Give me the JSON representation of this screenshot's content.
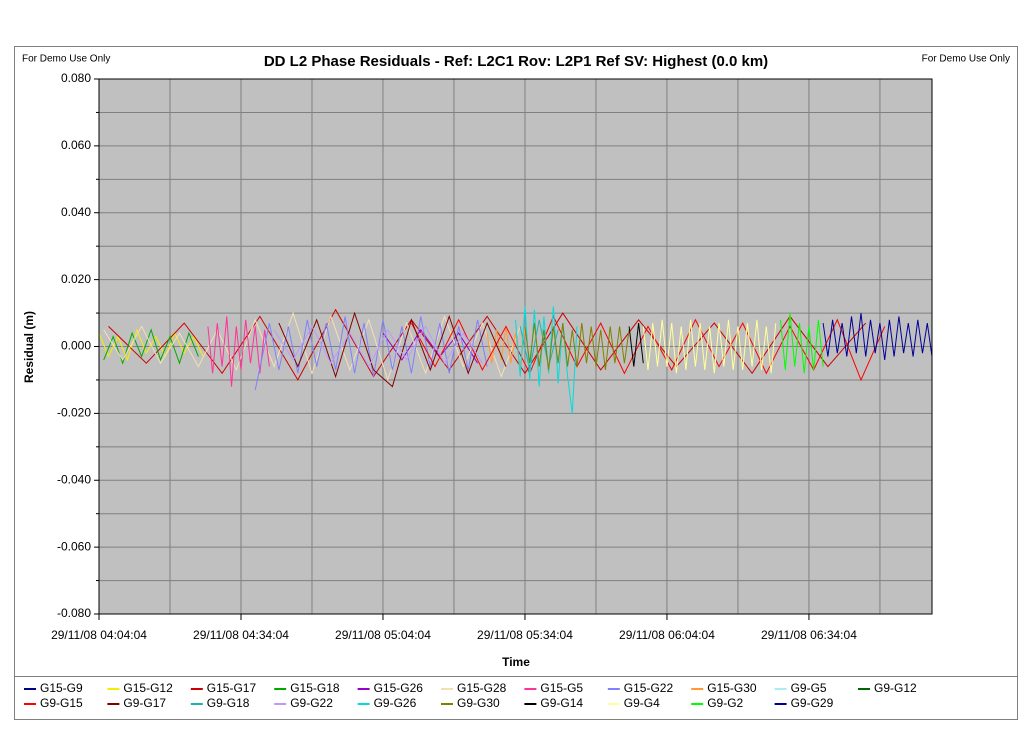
{
  "chart_data": {
    "type": "line",
    "title": "DD L2 Phase Residuals - Ref: L2C1 Rov: L2P1 Ref SV: Highest (0.0 km)",
    "note_left": "For Demo Use Only",
    "note_right": "For Demo Use Only",
    "x_label": "Time",
    "y_label": "Residual (m)",
    "xlim": [
      "29/11/08 04:04:04",
      "29/11/08 07:00:04"
    ],
    "xticks": [
      "29/11/08 04:04:04",
      "29/11/08 04:34:04",
      "29/11/08 05:04:04",
      "29/11/08 05:34:04",
      "29/11/08 06:04:04",
      "29/11/08 06:34:04"
    ],
    "x_minor_ticks": [
      "29/11/08 04:19:04",
      "29/11/08 04:49:04",
      "29/11/08 05:19:04",
      "29/11/08 05:49:04",
      "29/11/08 06:19:04",
      "29/11/08 06:49:04"
    ],
    "ylim": [
      -0.08,
      0.08
    ],
    "yticks": [
      {
        "value": -0.08,
        "label": "-0.080"
      },
      {
        "value": -0.06,
        "label": "-0.060"
      },
      {
        "value": -0.04,
        "label": "-0.040"
      },
      {
        "value": -0.02,
        "label": "-0.020"
      },
      {
        "value": 0,
        "label": "0.000"
      },
      {
        "value": 0.02,
        "label": "0.020"
      },
      {
        "value": 0.04,
        "label": "0.040"
      },
      {
        "value": 0.06,
        "label": "0.060"
      },
      {
        "value": 0.08,
        "label": "0.080"
      }
    ],
    "y_minor_ticks": [
      -0.07,
      -0.05,
      -0.03,
      -0.01,
      0.01,
      0.03,
      0.05,
      0.07
    ],
    "grid": true,
    "plot_background": "#c0c0c0",
    "legend_position": "bottom",
    "series": [
      {
        "name": "G15-G9",
        "color": "#00008b",
        "x": [],
        "values": []
      },
      {
        "name": "G15-G12",
        "color": "#f0f000",
        "x": [
          "29/11/08 04:04:04",
          "29/11/08 04:06:04",
          "29/11/08 04:08:04",
          "29/11/08 04:10:04",
          "29/11/08 04:12:04",
          "29/11/08 04:14:04",
          "29/11/08 04:16:04",
          "29/11/08 04:18:04",
          "29/11/08 04:20:04",
          "29/11/08 04:22:04",
          "29/11/08 04:24:04",
          "29/11/08 04:26:04"
        ],
        "values": [
          0.004,
          -0.003,
          0.003,
          -0.004,
          0.005,
          -0.002,
          0.003,
          -0.003,
          0.004,
          -0.002,
          0.003,
          -0.003
        ]
      },
      {
        "name": "G15-G17",
        "color": "#cc0000",
        "x": [
          "29/11/08 04:06:04",
          "29/11/08 04:14:04",
          "29/11/08 04:22:04",
          "29/11/08 04:30:04",
          "29/11/08 04:38:04",
          "29/11/08 04:46:04",
          "29/11/08 04:54:04",
          "29/11/08 05:02:04",
          "29/11/08 05:10:04",
          "29/11/08 05:18:04",
          "29/11/08 05:26:04",
          "29/11/08 05:34:04",
          "29/11/08 05:42:04",
          "29/11/08 05:50:04",
          "29/11/08 05:58:04",
          "29/11/08 06:06:04",
          "29/11/08 06:14:04",
          "29/11/08 06:22:04",
          "29/11/08 06:30:04",
          "29/11/08 06:38:04",
          "29/11/08 06:46:04"
        ],
        "values": [
          0.006,
          -0.005,
          0.007,
          -0.008,
          0.009,
          -0.01,
          0.011,
          -0.009,
          0.008,
          -0.007,
          0.009,
          -0.008,
          0.01,
          -0.007,
          0.008,
          -0.006,
          0.007,
          -0.008,
          0.009,
          -0.006,
          0.007
        ]
      },
      {
        "name": "G15-G18",
        "color": "#00aa00",
        "x": [
          "29/11/08 04:05:04",
          "29/11/08 04:07:04",
          "29/11/08 04:09:04",
          "29/11/08 04:11:04",
          "29/11/08 04:13:04",
          "29/11/08 04:15:04",
          "29/11/08 04:17:04",
          "29/11/08 04:19:04",
          "29/11/08 04:21:04",
          "29/11/08 04:23:04",
          "29/11/08 04:25:04"
        ],
        "values": [
          -0.004,
          0.003,
          -0.005,
          0.004,
          -0.003,
          0.005,
          -0.004,
          0.003,
          -0.005,
          0.004,
          -0.003
        ]
      },
      {
        "name": "G15-G26",
        "color": "#9900cc",
        "x": [
          "29/11/08 05:04:04",
          "29/11/08 05:08:04",
          "29/11/08 05:12:04",
          "29/11/08 05:16:04",
          "29/11/08 05:20:04",
          "29/11/08 05:24:04"
        ],
        "values": [
          0.004,
          -0.004,
          0.005,
          -0.003,
          0.004,
          -0.005
        ]
      },
      {
        "name": "G15-G28",
        "color": "#f5deb3",
        "x": [
          "29/11/08 04:05:04",
          "29/11/08 04:09:04",
          "29/11/08 04:13:04",
          "29/11/08 04:17:04",
          "29/11/08 04:21:04",
          "29/11/08 04:25:04",
          "29/11/08 04:29:04",
          "29/11/08 04:33:04",
          "29/11/08 04:37:04",
          "29/11/08 04:41:04",
          "29/11/08 04:45:04",
          "29/11/08 04:49:04",
          "29/11/08 04:53:04",
          "29/11/08 04:57:04",
          "29/11/08 05:01:04",
          "29/11/08 05:05:04",
          "29/11/08 05:09:04",
          "29/11/08 05:13:04",
          "29/11/08 05:17:04",
          "29/11/08 05:21:04",
          "29/11/08 05:25:04",
          "29/11/08 05:29:04",
          "29/11/08 05:33:04"
        ],
        "values": [
          0.005,
          -0.004,
          0.006,
          -0.005,
          0.004,
          -0.006,
          0.005,
          -0.007,
          0.008,
          -0.006,
          0.01,
          -0.008,
          0.009,
          -0.007,
          0.008,
          -0.01,
          0.007,
          -0.008,
          0.009,
          -0.006,
          0.007,
          -0.009,
          0.006
        ]
      },
      {
        "name": "G15-G5",
        "color": "#ff3399",
        "x": [
          "29/11/08 04:27:04",
          "29/11/08 04:28:04",
          "29/11/08 04:29:04",
          "29/11/08 04:30:04",
          "29/11/08 04:31:04",
          "29/11/08 04:32:04",
          "29/11/08 04:33:04",
          "29/11/08 04:34:04",
          "29/11/08 04:35:04",
          "29/11/08 04:36:04",
          "29/11/08 04:37:04",
          "29/11/08 04:38:04",
          "29/11/08 04:39:04",
          "29/11/08 04:40:04"
        ],
        "values": [
          0.006,
          -0.008,
          0.007,
          -0.006,
          0.009,
          -0.012,
          0.006,
          -0.007,
          0.008,
          -0.005,
          0.006,
          -0.008,
          0.005,
          -0.006
        ]
      },
      {
        "name": "G15-G22",
        "color": "#8080ff",
        "x": [
          "29/11/08 04:37:04",
          "29/11/08 04:40:04",
          "29/11/08 04:42:04",
          "29/11/08 04:44:04",
          "29/11/08 04:46:04",
          "29/11/08 04:48:04",
          "29/11/08 04:50:04",
          "29/11/08 04:52:04",
          "29/11/08 04:54:04",
          "29/11/08 04:56:04",
          "29/11/08 04:58:04",
          "29/11/08 05:00:04",
          "29/11/08 05:02:04",
          "29/11/08 05:04:04",
          "29/11/08 05:06:04",
          "29/11/08 05:08:04",
          "29/11/08 05:10:04",
          "29/11/08 05:12:04",
          "29/11/08 05:14:04",
          "29/11/08 05:16:04",
          "29/11/08 05:18:04",
          "29/11/08 05:20:04",
          "29/11/08 05:22:04",
          "29/11/08 05:24:04",
          "29/11/08 05:26:04"
        ],
        "values": [
          -0.013,
          0.007,
          -0.007,
          0.006,
          -0.008,
          0.008,
          -0.006,
          0.007,
          -0.007,
          0.009,
          -0.008,
          0.007,
          -0.009,
          0.008,
          -0.007,
          0.006,
          -0.008,
          0.009,
          -0.006,
          0.007,
          -0.008,
          0.006,
          -0.007,
          0.008,
          -0.006
        ]
      },
      {
        "name": "G15-G30",
        "color": "#ff9933",
        "x": [
          "29/11/08 05:26:04",
          "29/11/08 05:27:04",
          "29/11/08 05:28:04",
          "29/11/08 05:29:04",
          "29/11/08 05:30:04",
          "29/11/08 05:31:04",
          "29/11/08 05:32:04",
          "29/11/08 05:33:04",
          "29/11/08 05:34:04"
        ],
        "values": [
          0.004,
          -0.005,
          0.005,
          -0.004,
          0.006,
          -0.005,
          0.004,
          -0.006,
          0.005
        ]
      },
      {
        "name": "G9-G5",
        "color": "#aaeeee",
        "x": [],
        "values": []
      },
      {
        "name": "G9-G12",
        "color": "#006600",
        "x": [],
        "values": []
      },
      {
        "name": "G9-G15",
        "color": "#ff0000",
        "x": [
          "29/11/08 05:10:04",
          "29/11/08 05:15:04",
          "29/11/08 05:20:04",
          "29/11/08 05:25:04",
          "29/11/08 05:30:04",
          "29/11/08 05:35:04",
          "29/11/08 05:40:04",
          "29/11/08 05:45:04",
          "29/11/08 05:50:04",
          "29/11/08 05:55:04",
          "29/11/08 06:00:04",
          "29/11/08 06:05:04",
          "29/11/08 06:10:04",
          "29/11/08 06:15:04",
          "29/11/08 06:20:04",
          "29/11/08 06:25:04",
          "29/11/08 06:30:04",
          "29/11/08 06:35:04",
          "29/11/08 06:40:04",
          "29/11/08 06:45:04",
          "29/11/08 06:50:04"
        ],
        "values": [
          0.007,
          -0.006,
          0.008,
          -0.007,
          0.006,
          -0.008,
          0.009,
          -0.006,
          0.007,
          -0.008,
          0.006,
          -0.007,
          0.008,
          -0.006,
          0.007,
          -0.008,
          0.006,
          -0.007,
          0.008,
          -0.01,
          0.006
        ]
      },
      {
        "name": "G9-G17",
        "color": "#800000",
        "x": [
          "29/11/08 04:42:04",
          "29/11/08 04:46:04",
          "29/11/08 04:50:04",
          "29/11/08 04:54:04",
          "29/11/08 04:58:04",
          "29/11/08 05:02:04",
          "29/11/08 05:06:04",
          "29/11/08 05:10:04",
          "29/11/08 05:14:04",
          "29/11/08 05:18:04",
          "29/11/08 05:22:04",
          "29/11/08 05:26:04",
          "29/11/08 05:30:04"
        ],
        "values": [
          0.007,
          -0.006,
          0.008,
          -0.009,
          0.01,
          -0.007,
          -0.012,
          0.008,
          -0.007,
          0.009,
          -0.008,
          0.007,
          -0.006
        ]
      },
      {
        "name": "G9-G18",
        "color": "#20b2aa",
        "x": [
          "29/11/08 05:33:04",
          "29/11/08 05:35:04",
          "29/11/08 05:37:04",
          "29/11/08 05:39:04",
          "29/11/08 05:41:04"
        ],
        "values": [
          0.006,
          -0.007,
          0.008,
          -0.006,
          0.005
        ]
      },
      {
        "name": "G9-G22",
        "color": "#bb99ff",
        "x": [
          "29/11/08 04:41:04",
          "29/11/08 04:45:04",
          "29/11/08 04:49:04",
          "29/11/08 04:53:04",
          "29/11/08 04:57:04",
          "29/11/08 05:01:04",
          "29/11/08 05:05:04",
          "29/11/08 05:09:04",
          "29/11/08 05:13:04",
          "29/11/08 05:17:04",
          "29/11/08 05:21:04",
          "29/11/08 05:25:04"
        ],
        "values": [
          0.005,
          -0.004,
          0.006,
          -0.005,
          0.004,
          -0.006,
          0.005,
          -0.004,
          0.006,
          -0.005,
          0.004,
          -0.005
        ]
      },
      {
        "name": "G9-G26",
        "color": "#00dddd",
        "x": [
          "29/11/08 05:32:04",
          "29/11/08 05:33:04",
          "29/11/08 05:34:04",
          "29/11/08 05:35:04",
          "29/11/08 05:36:04",
          "29/11/08 05:37:04",
          "29/11/08 05:38:04",
          "29/11/08 05:39:04",
          "29/11/08 05:40:04",
          "29/11/08 05:41:04",
          "29/11/08 05:42:04",
          "29/11/08 05:43:04",
          "29/11/08 05:44:04",
          "29/11/08 05:45:04"
        ],
        "values": [
          0.008,
          -0.009,
          0.012,
          -0.01,
          0.011,
          -0.012,
          0.009,
          -0.008,
          0.012,
          -0.011,
          0.007,
          -0.009,
          -0.02,
          0.006
        ]
      },
      {
        "name": "G9-G30",
        "color": "#808000",
        "x": [
          "29/11/08 05:34:04",
          "29/11/08 05:35:04",
          "29/11/08 05:36:04",
          "29/11/08 05:37:04",
          "29/11/08 05:38:04",
          "29/11/08 05:39:04",
          "29/11/08 05:40:04",
          "29/11/08 05:41:04",
          "29/11/08 05:42:04",
          "29/11/08 05:43:04",
          "29/11/08 05:44:04",
          "29/11/08 05:45:04",
          "29/11/08 05:46:04",
          "29/11/08 05:47:04",
          "29/11/08 05:48:04",
          "29/11/08 05:49:04",
          "29/11/08 05:50:04",
          "29/11/08 05:51:04",
          "29/11/08 05:52:04",
          "29/11/08 05:53:04",
          "29/11/08 05:54:04",
          "29/11/08 05:55:04",
          "29/11/08 05:56:04"
        ],
        "values": [
          0.006,
          -0.005,
          0.007,
          -0.006,
          0.005,
          -0.007,
          0.006,
          -0.005,
          0.007,
          -0.006,
          0.005,
          -0.006,
          0.007,
          -0.005,
          0.006,
          -0.006,
          0.005,
          -0.007,
          0.006,
          -0.005,
          0.006,
          -0.005,
          0.005
        ]
      },
      {
        "name": "G9-G14",
        "color": "#000000",
        "x": [
          "29/11/08 05:56:04",
          "29/11/08 05:57:04",
          "29/11/08 05:58:04",
          "29/11/08 05:59:04"
        ],
        "values": [
          0.006,
          -0.006,
          0.007,
          -0.005
        ]
      },
      {
        "name": "G9-G4",
        "color": "#ffff99",
        "x": [
          "29/11/08 05:59:04",
          "29/11/08 06:00:04",
          "29/11/08 06:01:04",
          "29/11/08 06:02:04",
          "29/11/08 06:03:04",
          "29/11/08 06:04:04",
          "29/11/08 06:05:04",
          "29/11/08 06:06:04",
          "29/11/08 06:07:04",
          "29/11/08 06:08:04",
          "29/11/08 06:09:04",
          "29/11/08 06:10:04",
          "29/11/08 06:11:04",
          "29/11/08 06:12:04",
          "29/11/08 06:13:04",
          "29/11/08 06:14:04",
          "29/11/08 06:15:04",
          "29/11/08 06:16:04",
          "29/11/08 06:17:04",
          "29/11/08 06:18:04",
          "29/11/08 06:19:04",
          "29/11/08 06:20:04",
          "29/11/08 06:21:04",
          "29/11/08 06:22:04",
          "29/11/08 06:23:04",
          "29/11/08 06:24:04",
          "29/11/08 06:25:04",
          "29/11/08 06:26:04",
          "29/11/08 06:27:04"
        ],
        "values": [
          0.006,
          -0.007,
          0.007,
          -0.006,
          0.008,
          -0.006,
          0.007,
          -0.008,
          0.006,
          -0.007,
          0.008,
          -0.006,
          0.007,
          -0.007,
          0.006,
          -0.008,
          0.007,
          -0.006,
          0.008,
          -0.007,
          0.006,
          -0.007,
          0.007,
          -0.006,
          0.008,
          -0.007,
          0.006,
          -0.008,
          0.007
        ]
      },
      {
        "name": "G9-G2",
        "color": "#00ff00",
        "x": [
          "29/11/08 06:28:04",
          "29/11/08 06:29:04",
          "29/11/08 06:30:04",
          "29/11/08 06:31:04",
          "29/11/08 06:32:04",
          "29/11/08 06:33:04",
          "29/11/08 06:34:04",
          "29/11/08 06:35:04",
          "29/11/08 06:36:04",
          "29/11/08 06:37:04"
        ],
        "values": [
          0.008,
          -0.007,
          0.01,
          -0.006,
          0.007,
          -0.008,
          0.006,
          -0.007,
          0.008,
          -0.006
        ]
      },
      {
        "name": "G9-G29",
        "color": "#000099",
        "x": [
          "29/11/08 06:37:04",
          "29/11/08 06:38:04",
          "29/11/08 06:39:04",
          "29/11/08 06:40:04",
          "29/11/08 06:41:04",
          "29/11/08 06:42:04",
          "29/11/08 06:43:04",
          "29/11/08 06:44:04",
          "29/11/08 06:45:04",
          "29/11/08 06:46:04",
          "29/11/08 06:47:04",
          "29/11/08 06:48:04",
          "29/11/08 06:49:04",
          "29/11/08 06:50:04",
          "29/11/08 06:51:04",
          "29/11/08 06:52:04",
          "29/11/08 06:53:04",
          "29/11/08 06:54:04",
          "29/11/08 06:55:04",
          "29/11/08 06:56:04",
          "29/11/08 06:57:04",
          "29/11/08 06:58:04",
          "29/11/08 06:59:04",
          "29/11/08 07:00:04"
        ],
        "values": [
          0.007,
          -0.003,
          0.008,
          -0.002,
          0.007,
          -0.003,
          0.009,
          -0.002,
          0.01,
          -0.003,
          0.008,
          -0.002,
          0.007,
          -0.004,
          0.008,
          -0.003,
          0.009,
          -0.002,
          0.007,
          -0.003,
          0.008,
          -0.002,
          0.007,
          -0.003
        ]
      }
    ]
  }
}
